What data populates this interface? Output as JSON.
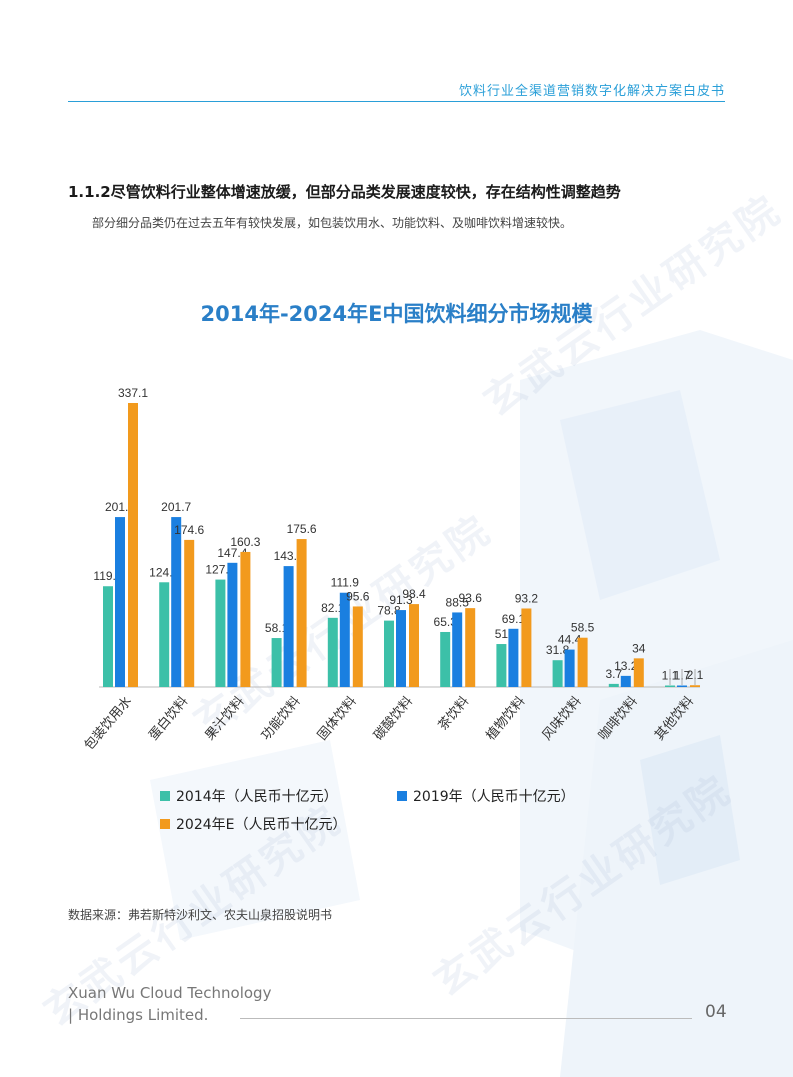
{
  "header": {
    "title": "饮料行业全渠道营销数字化解决方案白皮书"
  },
  "section": {
    "heading": "1.1.2尽管饮料行业整体增速放缓，但部分品类发展速度较快，存在结构性调整趋势",
    "subtitle": "部分细分品类仍在过去五年有较快发展，如包装饮用水、功能饮料、及咖啡饮料增速较快。"
  },
  "colors": {
    "s2014": "#3cc0a8",
    "s2019": "#1a7fe0",
    "s2024": "#f29a1d",
    "accent": "#2a9fd8"
  },
  "chart_data": {
    "type": "bar",
    "title": "2014年-2024年E中国饮料细分市场规模",
    "categories": [
      "包装饮用水",
      "蛋白饮料",
      "果汁饮料",
      "功能饮料",
      "固体饮料",
      "碳酸饮料",
      "茶饮料",
      "植物饮料",
      "风味饮料",
      "咖啡饮料",
      "其他饮料"
    ],
    "series": [
      {
        "name": "2014年（人民币十亿元）",
        "values": [
          119.6,
          124.3,
          127.5,
          58.1,
          82.1,
          78.8,
          65.3,
          51,
          31.8,
          3.7,
          1.1
        ],
        "labels": [
          "119.6",
          "124.3",
          "127.5",
          "58.1",
          "82.1",
          "78.8",
          "65.3",
          "51",
          "31.8",
          "3.7",
          "1.1"
        ]
      },
      {
        "name": "2019年（人民币十亿元）",
        "values": [
          201.7,
          201.7,
          147.4,
          143.5,
          111.9,
          91.3,
          88.5,
          69.1,
          44.4,
          13.2,
          1.7
        ],
        "labels": [
          "201.7",
          "201.7",
          "147.4",
          "143.5",
          "111.9",
          "91.3",
          "88.5",
          "69.1",
          "44.4",
          "13.2",
          "1.7"
        ]
      },
      {
        "name": "2024年E（人民币十亿元）",
        "values": [
          337.1,
          174.6,
          160.3,
          175.6,
          95.6,
          98.4,
          93.6,
          93.2,
          58.5,
          34,
          2.1
        ],
        "labels": [
          "337.1",
          "174.6",
          "160.3",
          "175.6",
          "95.6",
          "98.4",
          "93.6",
          "93.2",
          "58.5",
          "34",
          "2.1"
        ]
      }
    ],
    "ylim": [
      0,
      340
    ],
    "grid": false,
    "legend_position": "bottom"
  },
  "source": "数据来源：弗若斯特沙利文、农夫山泉招股说明书",
  "footer": {
    "company_line1": "Xuan Wu Cloud Technology",
    "company_line2": "| Holdings Limited.",
    "page_number": "04"
  },
  "watermark": {
    "text": "玄武云行业研究院"
  }
}
